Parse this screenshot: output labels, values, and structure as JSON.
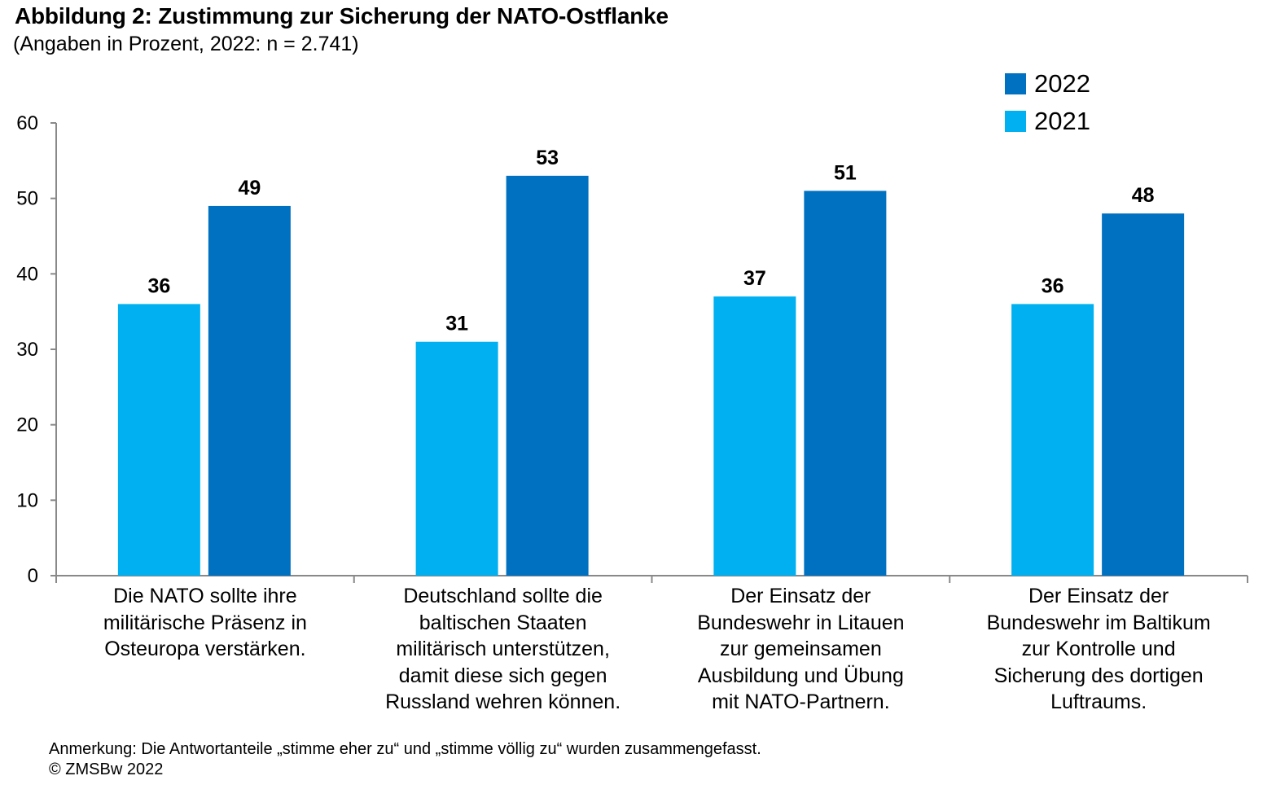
{
  "header": {
    "title": "Abbildung 2: Zustimmung zur Sicherung der NATO-Ostflanke",
    "subtitle": "(Angaben in Prozent, 2022: n = 2.741)"
  },
  "legend": [
    {
      "label": "2022",
      "color": "#0070c0"
    },
    {
      "label": "2021",
      "color": "#00b0f0"
    }
  ],
  "footnote": {
    "note": "Anmerkung: Die Antwortanteile „stimme eher zu“ und „stimme völlig zu“ wurden zusammengefasst.",
    "copyright": "© ZMSBw 2022"
  },
  "chart_data": {
    "type": "bar",
    "title": "Abbildung 2: Zustimmung zur Sicherung der NATO-Ostflanke",
    "subtitle": "(Angaben in Prozent, 2022: n = 2.741)",
    "xlabel": "",
    "ylabel": "",
    "ylim": [
      0,
      60
    ],
    "yticks": [
      0,
      10,
      20,
      30,
      40,
      50,
      60
    ],
    "grid": false,
    "legend_position": "top-right",
    "categories": [
      "Die NATO sollte ihre militärische Präsenz in Osteuropa verstärken.",
      "Deutschland sollte die baltischen Staaten militärisch unterstützen, damit diese sich gegen Russland wehren können.",
      "Der Einsatz der Bundeswehr in Litauen zur gemeinsamen Ausbildung und Übung mit NATO-Partnern.",
      "Der Einsatz der Bundeswehr im Baltikum zur Kontrolle und Sicherung des dortigen Luftraums."
    ],
    "category_lines": [
      [
        "Die NATO sollte ihre",
        "militärische Präsenz in",
        "Osteuropa verstärken."
      ],
      [
        "Deutschland sollte die",
        "baltischen Staaten",
        "militärisch unterstützen,",
        "damit diese sich gegen",
        "Russland wehren können."
      ],
      [
        "Der Einsatz der",
        "Bundeswehr in Litauen",
        "zur gemeinsamen",
        "Ausbildung und Übung",
        "mit NATO-Partnern."
      ],
      [
        "Der Einsatz der",
        "Bundeswehr im Baltikum",
        "zur Kontrolle und",
        "Sicherung des dortigen",
        "Luftraums."
      ]
    ],
    "series": [
      {
        "name": "2021",
        "color": "#00b0f0",
        "values": [
          36,
          31,
          37,
          36
        ]
      },
      {
        "name": "2022",
        "color": "#0070c0",
        "values": [
          49,
          53,
          51,
          48
        ]
      }
    ]
  }
}
